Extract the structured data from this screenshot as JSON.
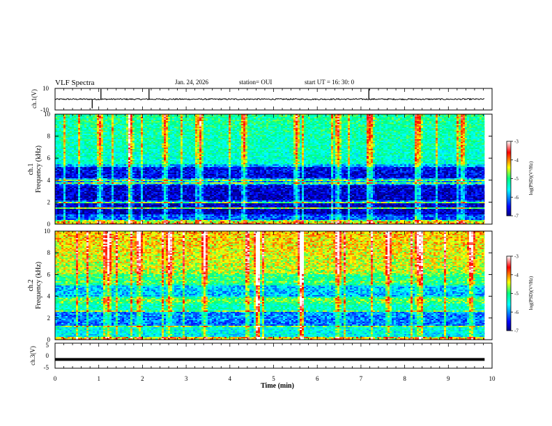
{
  "header": {
    "title": "VLF Spectra",
    "date": "Jan. 24, 2026",
    "station": "station= OUI",
    "start_time": "start  UT =   16: 30: 0"
  },
  "chart_data": [
    {
      "type": "line",
      "panel": "ch1_waveform",
      "ylabel": "ch.1(V)",
      "ylim": [
        -10,
        10
      ],
      "ytick_labels": [
        "10",
        "-10"
      ],
      "x_range_min": [
        0,
        9.83
      ],
      "baseline_value_V": 0,
      "spike_times_min": [
        0.85,
        1.05,
        2.15,
        7.18
      ],
      "color": "#000000"
    },
    {
      "type": "heatmap",
      "panel": "ch1_spectrogram",
      "ylabel_lines": [
        "ch.1",
        "Frequency (kHz)"
      ],
      "ylim": [
        0,
        10
      ],
      "ytick_labels": [
        "0",
        "2",
        "4",
        "6",
        "8",
        "10"
      ],
      "x_range_min": [
        0,
        9.83
      ],
      "dark_bands_kHz": [
        [
          2.2,
          3.6
        ],
        [
          0.9,
          1.9
        ],
        [
          4.2,
          5.2
        ]
      ],
      "bright_lines_kHz": [
        0.15,
        0.35,
        1.5,
        2.0,
        3.7,
        4.0
      ],
      "impulsive_event_times_min": [
        1.0,
        1.7,
        2.5,
        3.3,
        4.3,
        5.5,
        6.45,
        7.2,
        8.3,
        9.3
      ],
      "colorbar": {
        "label": "log(PSD)(V²/Hz)",
        "range": [
          -7,
          -3
        ],
        "tick_labels": [
          "-3",
          "-4",
          "-5",
          "-6",
          "-7"
        ]
      }
    },
    {
      "type": "heatmap",
      "panel": "ch2_spectrogram",
      "ylabel_lines": [
        "ch.2",
        "Frequency (kHz)"
      ],
      "ylim": [
        0,
        10
      ],
      "ytick_labels": [
        "0",
        "2",
        "4",
        "6",
        "8",
        "10"
      ],
      "x_range_min": [
        0,
        9.83
      ],
      "bright_band_kHz": [
        3.3,
        3.9
      ],
      "dark_bands_kHz": [
        [
          4.0,
          5.0
        ],
        [
          1.2,
          2.5
        ]
      ],
      "bright_lines_kHz": [
        1.2,
        2.6,
        3.6,
        5.3
      ],
      "impulsive_event_times_min": [
        1.2,
        1.9,
        2.6,
        3.4,
        4.6,
        5.6,
        6.45,
        7.6,
        8.3,
        9.5
      ],
      "colorbar": {
        "label": "log(PSD)(V²/Hz)",
        "range": [
          -7,
          -3
        ],
        "tick_labels": [
          "-3",
          "-4",
          "-5",
          "-6",
          "-7"
        ]
      }
    },
    {
      "type": "line",
      "panel": "ch3_waveform",
      "ylabel": "ch.3(V)",
      "ylim": [
        -5,
        5
      ],
      "ytick_labels": [
        "5",
        "0",
        "-5"
      ],
      "x_range_min": [
        0,
        9.83
      ],
      "constant_value_V": -1.5,
      "xlabel": "Time (min)",
      "xlim": [
        0,
        10
      ],
      "xtick_labels": [
        "0",
        "1",
        "2",
        "3",
        "4",
        "5",
        "6",
        "7",
        "8",
        "9",
        "10"
      ],
      "color": "#000000"
    }
  ]
}
